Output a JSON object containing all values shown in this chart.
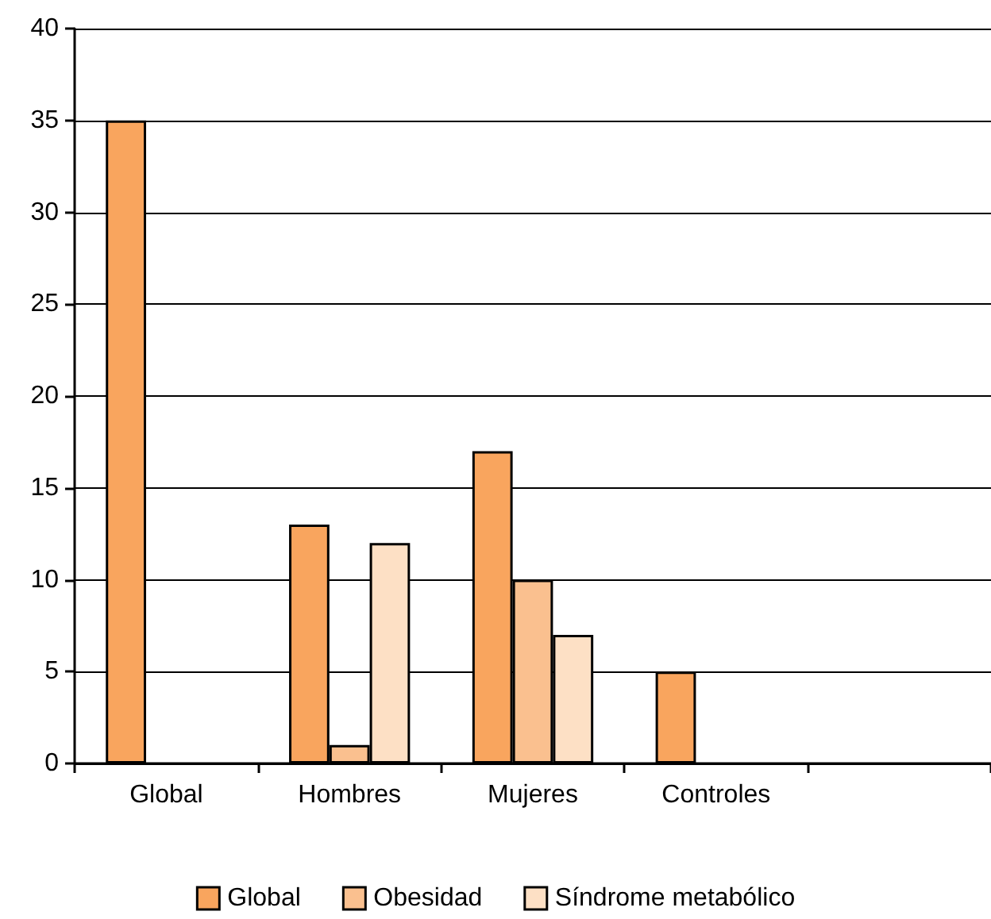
{
  "chart_data": {
    "type": "bar",
    "categories": [
      "Global",
      "Hombres",
      "Mujeres",
      "Controles",
      null
    ],
    "series": [
      {
        "name": "Global",
        "color": "#f9a55e",
        "values": [
          35,
          13,
          17,
          5,
          null
        ]
      },
      {
        "name": "Obesidad",
        "color": "#fac08f",
        "values": [
          null,
          1,
          10,
          null,
          null
        ]
      },
      {
        "name": "Síndrome metabólico",
        "color": "#fde0c5",
        "values": [
          null,
          12,
          7,
          null,
          null
        ]
      }
    ],
    "ylim": [
      0,
      40
    ],
    "yticks": [
      0,
      5,
      10,
      15,
      20,
      25,
      30,
      35,
      40
    ],
    "grid": "y",
    "legend": "bottom"
  }
}
